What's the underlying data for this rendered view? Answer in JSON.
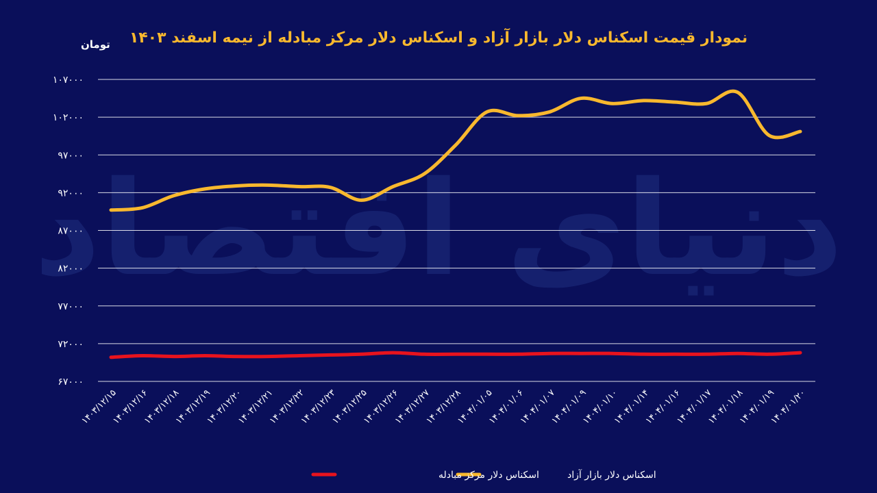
{
  "chart_data": {
    "type": "line",
    "title": "نمودار قیمت اسکناس دلار بازار آزاد و اسکناس دلار مرکز مبادله از نیمه اسفند ۱۴۰۳",
    "ylabel": "تومان",
    "xlabel": "",
    "ylim": [
      67000,
      107000
    ],
    "yticks": [
      "۱۰۷۰۰۰",
      "۱۰۲۰۰۰",
      "۹۷۰۰۰",
      "۹۲۰۰۰",
      "۸۷۰۰۰",
      "۸۲۰۰۰",
      "۷۷۰۰۰",
      "۷۲۰۰۰",
      "۶۷۰۰۰"
    ],
    "ytick_values": [
      107000,
      102000,
      97000,
      92000,
      87000,
      82000,
      77000,
      72000,
      67000
    ],
    "categories": [
      "۱۴۰۳/۱۲/۱۵",
      "۱۴۰۳/۱۲/۱۶",
      "۱۴۰۳/۱۲/۱۸",
      "۱۴۰۳/۱۲/۱۹",
      "۱۴۰۳/۱۲/۲۰",
      "۱۴۰۳/۱۲/۲۱",
      "۱۴۰۳/۱۲/۲۲",
      "۱۴۰۳/۱۲/۲۳",
      "۱۴۰۳/۱۲/۲۵",
      "۱۴۰۳/۱۲/۲۶",
      "۱۴۰۳/۱۲/۲۷",
      "۱۴۰۳/۱۲/۲۸",
      "۱۴۰۴/۰۱/۰۵",
      "۱۴۰۴/۰۱/۰۶",
      "۱۴۰۴/۰۱/۰۷",
      "۱۴۰۴/۰۱/۰۹",
      "۱۴۰۴/۰۱/۱۰",
      "۱۴۰۴/۰۱/۱۴",
      "۱۴۰۴/۰۱/۱۶",
      "۱۴۰۴/۰۱/۱۷",
      "۱۴۰۴/۰۱/۱۸",
      "۱۴۰۴/۰۱/۱۹",
      "۱۴۰۴/۰۱/۲۰"
    ],
    "series": [
      {
        "name": "اسکناس دلار بازار آزاد",
        "color": "#f8b82e",
        "values": [
          89700,
          90000,
          91600,
          92500,
          92900,
          93000,
          92800,
          92700,
          91000,
          92800,
          94500,
          98300,
          102700,
          102200,
          102700,
          104500,
          103800,
          104200,
          104000,
          103800,
          105300,
          99600,
          100100
        ]
      },
      {
        "name": "اسکناس دلار مرکز مبادله",
        "color": "#e8131d",
        "values": [
          70200,
          70400,
          70300,
          70400,
          70300,
          70300,
          70400,
          70500,
          70600,
          70800,
          70600,
          70600,
          70600,
          70600,
          70700,
          70700,
          70700,
          70600,
          70600,
          70600,
          70700,
          70600,
          70800
        ]
      }
    ],
    "grid": true,
    "legend_position": "bottom",
    "watermark": "دنیای اقتصاد"
  }
}
